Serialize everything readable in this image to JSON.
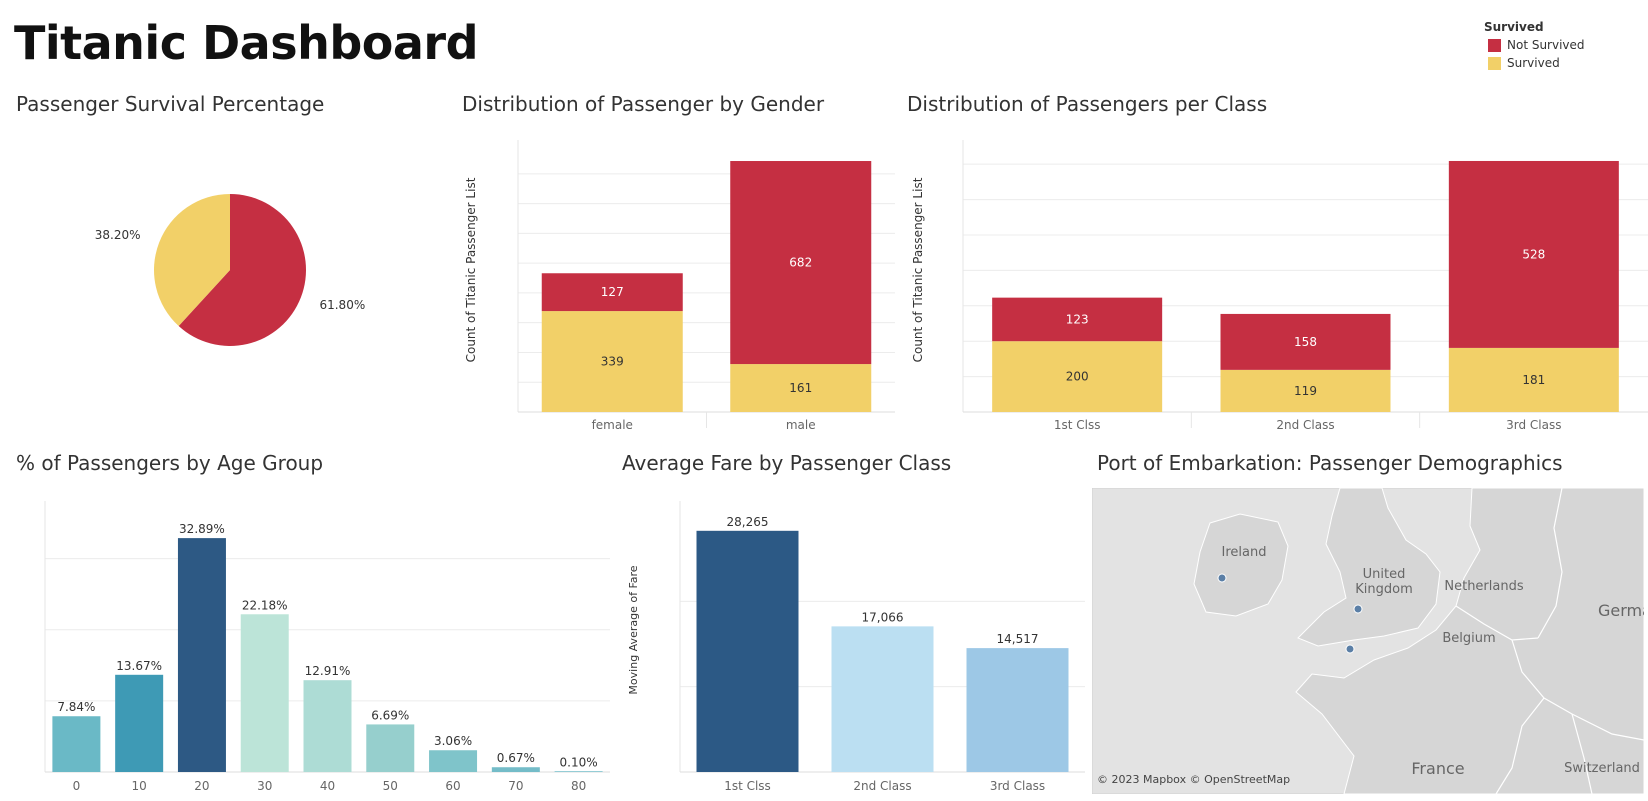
{
  "header": {
    "title": "Titanic Dashboard"
  },
  "legend": {
    "title": "Survived",
    "items": [
      {
        "label": "Not Survived",
        "color": "#c52f42"
      },
      {
        "label": "Survived",
        "color": "#f2d068"
      }
    ]
  },
  "colors": {
    "not_survived": "#c52f42",
    "survived": "#f2d068"
  },
  "chart_data": [
    {
      "id": "survival_pie",
      "type": "pie",
      "title": "Passenger Survival Percentage",
      "slices": [
        {
          "name": "Not Survived",
          "value": 61.8,
          "label": "61.80%"
        },
        {
          "name": "Survived",
          "value": 38.2,
          "label": "38.20%"
        }
      ]
    },
    {
      "id": "gender_bar",
      "type": "bar",
      "title": "Distribution of Passenger by Gender",
      "ylabel": "Count of Titanic Passenger List",
      "categories": [
        "female",
        "male"
      ],
      "series": [
        {
          "name": "Survived",
          "values": [
            339,
            161
          ]
        },
        {
          "name": "Not Survived",
          "values": [
            127,
            682
          ]
        }
      ],
      "ylim": [
        0,
        880
      ],
      "stacked": true
    },
    {
      "id": "class_bar",
      "type": "bar",
      "title": "Distribution of Passengers per Class",
      "ylabel": "Count of Titanic Passenger List",
      "categories": [
        "1st Clss",
        "2nd Class",
        "3rd Class"
      ],
      "series": [
        {
          "name": "Survived",
          "values": [
            200,
            119,
            181
          ]
        },
        {
          "name": "Not Survived",
          "values": [
            123,
            158,
            528
          ]
        }
      ],
      "ylim": [
        0,
        740
      ],
      "stacked": true
    },
    {
      "id": "age_bar",
      "type": "bar",
      "title": "% of Passengers by Age Group",
      "categories": [
        "0",
        "10",
        "20",
        "30",
        "40",
        "50",
        "60",
        "70",
        "80"
      ],
      "values": [
        7.84,
        13.67,
        32.89,
        22.18,
        12.91,
        6.69,
        3.06,
        0.67,
        0.1
      ],
      "value_labels": [
        "7.84%",
        "13.67%",
        "32.89%",
        "22.18%",
        "12.91%",
        "6.69%",
        "3.06%",
        "0.67%",
        "0.10%"
      ],
      "colors": [
        "#6ab9c6",
        "#3e9ab5",
        "#2d5984",
        "#bce4d8",
        "#addcd5",
        "#96cfcd",
        "#7fc4ca",
        "#74bcc8",
        "#6ab9c6"
      ],
      "ylim": [
        0,
        36
      ]
    },
    {
      "id": "fare_bar",
      "type": "bar",
      "title": "Average Fare by Passenger Class",
      "ylabel": "Moving Average of Fare",
      "categories": [
        "1st Clss",
        "2nd Class",
        "3rd Class"
      ],
      "values": [
        28265,
        17066,
        14517
      ],
      "value_labels": [
        "28,265",
        "17,066",
        "14,517"
      ],
      "colors": [
        "#2c5985",
        "#bbdff2",
        "#9dc8e6"
      ],
      "ylim": [
        0,
        30000
      ]
    }
  ],
  "map": {
    "title": "Port of Embarkation: Passenger Demographics",
    "labels": [
      "Ireland",
      "United Kingdom",
      "Netherlands",
      "Belgium",
      "German",
      "France",
      "Switzerland"
    ],
    "credit": "© 2023 Mapbox © OpenStreetMap"
  }
}
